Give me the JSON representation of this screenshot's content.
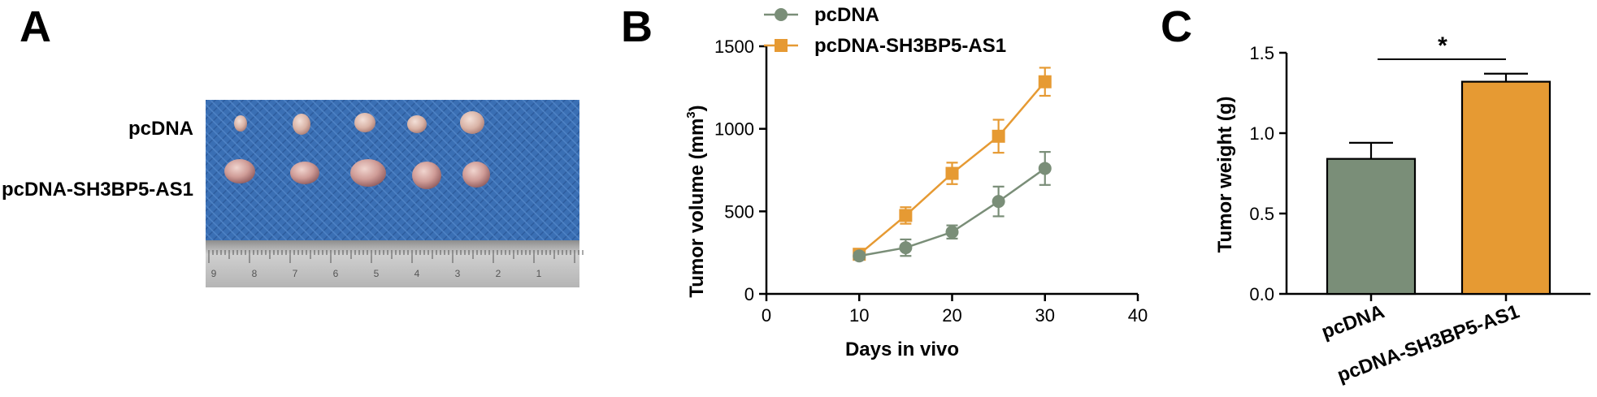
{
  "panels": {
    "a": "A",
    "b": "B",
    "c": "C"
  },
  "photo": {
    "row_labels": [
      "pcDNA",
      "pcDNA-SH3BP5-AS1"
    ],
    "ruler_numbers": [
      "9",
      "8",
      "7",
      "6",
      "5",
      "4",
      "3",
      "2",
      "1"
    ]
  },
  "colors": {
    "pcDNA": "#7a8e78",
    "pcDNA-SH3BP5-AS1": "#e69a33",
    "cloth": "#3a6fb4"
  },
  "chart_data": [
    {
      "type": "line",
      "xlabel": "Days in vivo",
      "ylabel_main": "Tumor volume (mm",
      "ylabel_sup": "3",
      "ylabel_close": ")",
      "xlim": [
        0,
        40
      ],
      "ylim": [
        0,
        1500
      ],
      "xticks": [
        "0",
        "10",
        "20",
        "30",
        "40"
      ],
      "yticks": [
        "0",
        "500",
        "1000",
        "1500"
      ],
      "legend_position": "top",
      "x": [
        10,
        15,
        20,
        25,
        30
      ],
      "series": [
        {
          "name": "pcDNA",
          "marker": "circle",
          "values": [
            230,
            280,
            375,
            560,
            760
          ],
          "errors": [
            20,
            50,
            40,
            90,
            100
          ]
        },
        {
          "name": "pcDNA-SH3BP5-AS1",
          "marker": "square",
          "values": [
            240,
            475,
            730,
            955,
            1285
          ],
          "errors": [
            20,
            50,
            65,
            100,
            85
          ]
        }
      ]
    },
    {
      "type": "bar",
      "ylabel": "Tumor weight (g)",
      "ylim": [
        0,
        1.5
      ],
      "yticks": [
        "0.0",
        "0.5",
        "1.0",
        "1.5"
      ],
      "categories": [
        "pcDNA",
        "pcDNA-SH3BP5-AS1"
      ],
      "values": [
        0.84,
        1.32
      ],
      "errors": [
        0.1,
        0.05
      ],
      "significance": "*"
    }
  ]
}
